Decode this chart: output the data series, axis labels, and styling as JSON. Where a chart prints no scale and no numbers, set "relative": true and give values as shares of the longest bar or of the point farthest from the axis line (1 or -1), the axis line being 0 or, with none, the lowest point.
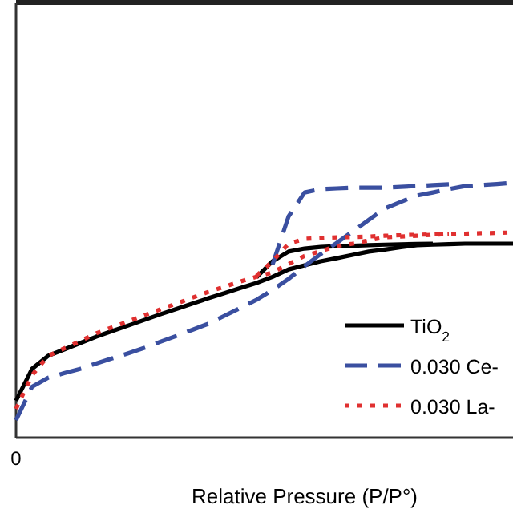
{
  "chart_data": {
    "type": "line",
    "relative": true,
    "xlabel": "Relative Pressure (P/P°)",
    "annotations": [
      "0"
    ],
    "legend": "bottom right",
    "categories": [
      null,
      null,
      null,
      null,
      null,
      null,
      null,
      null,
      null,
      null,
      null,
      null,
      null,
      null,
      null,
      null,
      null,
      null,
      null,
      null,
      null,
      null,
      null,
      null,
      null,
      null,
      null,
      null,
      null,
      null,
      null,
      null
    ],
    "series": [
      {
        "name": "TiO$_{2}$",
        "color": "#000000",
        "line_style": "solid",
        "values": [
          0.145,
          0.27,
          0.321,
          0.346,
          0.371,
          0.396,
          0.418,
          0.44,
          0.462,
          0.484,
          0.505,
          0.526,
          0.547,
          0.567,
          0.587,
          0.607,
          0.631,
          0.66,
          0.676,
          0.692,
          0.704,
          0.717,
          0.73,
          0.738,
          0.747,
          0.755,
          0.757,
          0.759,
          0.761,
          0.761,
          0.761,
          0.761
        ]
      },
      {
        "color": "#000000",
        "line_style": "solid",
        "values": [
          null,
          null,
          null,
          null,
          null,
          null,
          null,
          null,
          null,
          null,
          null,
          null,
          null,
          null,
          null,
          0.629,
          0.692,
          0.73,
          0.742,
          0.748,
          0.751,
          0.753,
          0.755,
          0.757,
          0.758,
          0.76,
          0.761,
          null,
          null,
          null,
          null,
          null
        ]
      },
      {
        "name": "0.030 Ce-",
        "color": "#3a4fa0",
        "line_style": "dashed",
        "values": [
          0.069,
          0.2,
          0.235,
          0.253,
          0.27,
          0.291,
          0.311,
          0.331,
          0.352,
          0.376,
          0.399,
          0.423,
          0.447,
          0.478,
          0.509,
          0.541,
          0.579,
          0.623,
          0.673,
          0.72,
          0.764,
          0.809,
          0.854,
          0.899,
          0.925,
          0.95,
          0.962,
          0.975,
          0.987,
          0.991,
          0.995,
          1
        ]
      },
      {
        "color": "#3a4fa0",
        "line_style": "dashed",
        "values": [
          null,
          null,
          null,
          null,
          null,
          null,
          null,
          null,
          null,
          null,
          null,
          null,
          null,
          null,
          null,
          null,
          0.679,
          0.868,
          0.962,
          0.975,
          0.978,
          0.981,
          0.981,
          0.981,
          0.984,
          0.987,
          0.991,
          0.994,
          null,
          null,
          null,
          null
        ]
      },
      {
        "name": "0.030 La-",
        "color": "#e03030",
        "line_style": "dotted",
        "values": [
          0.113,
          0.245,
          0.321,
          0.35,
          0.379,
          0.409,
          0.433,
          0.456,
          0.48,
          0.503,
          0.526,
          0.549,
          0.572,
          0.592,
          0.613,
          0.631,
          0.648,
          0.681,
          0.713,
          0.731,
          0.752,
          0.761,
          0.774,
          0.786,
          0.789,
          0.792,
          0.796,
          0.799,
          0.8,
          0.802,
          0.803,
          0.805
        ]
      },
      {
        "color": "#e03030",
        "line_style": "dotted",
        "values": [
          null,
          null,
          null,
          null,
          null,
          null,
          null,
          null,
          null,
          null,
          null,
          null,
          null,
          null,
          null,
          0.635,
          0.692,
          0.761,
          0.78,
          0.783,
          0.786,
          0.787,
          0.789,
          0.792,
          0.794,
          0.796,
          0.797,
          0.799,
          null,
          null,
          null,
          null
        ]
      }
    ]
  }
}
